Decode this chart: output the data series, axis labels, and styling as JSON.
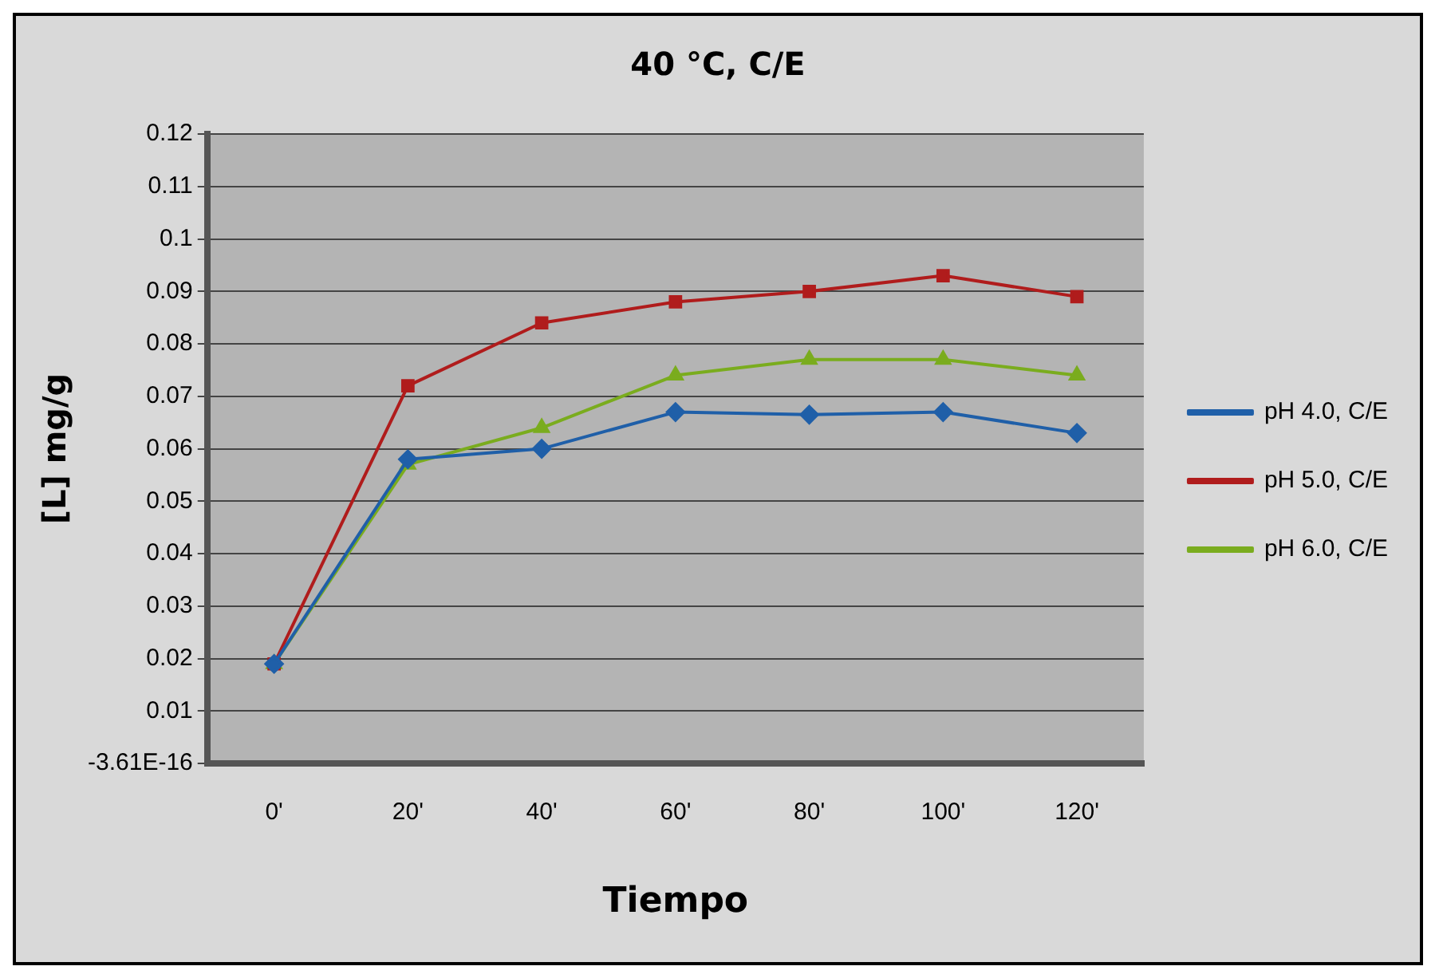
{
  "chart_data": {
    "type": "line",
    "title": "40 °C, C/E",
    "xlabel": "Tiempo",
    "ylabel": "[L] mg/g",
    "categories": [
      "0'",
      "20'",
      "40'",
      "60'",
      "80'",
      "100'",
      "120'"
    ],
    "series": [
      {
        "name": "pH 4.0, C/E",
        "color": "#1f5fa8",
        "marker": "diamond",
        "values": [
          0.019,
          0.058,
          0.06,
          0.067,
          0.0665,
          0.067,
          0.063
        ]
      },
      {
        "name": "pH 5.0, C/E",
        "color": "#b01c1c",
        "marker": "square",
        "values": [
          0.019,
          0.072,
          0.084,
          0.088,
          0.09,
          0.093,
          0.089
        ]
      },
      {
        "name": "pH 6.0, C/E",
        "color": "#7aac1e",
        "marker": "triangle",
        "values": [
          0.019,
          0.057,
          0.064,
          0.074,
          0.077,
          0.077,
          0.074
        ]
      }
    ],
    "ylim": [
      0,
      0.12
    ],
    "yticks": [
      {
        "value": 0,
        "label": "-3.61E-16"
      },
      0.01,
      0.02,
      0.03,
      0.04,
      0.05,
      0.06,
      0.07,
      0.08,
      0.09,
      0.1,
      0.11,
      0.12
    ],
    "grid": "y",
    "legend": "right"
  }
}
